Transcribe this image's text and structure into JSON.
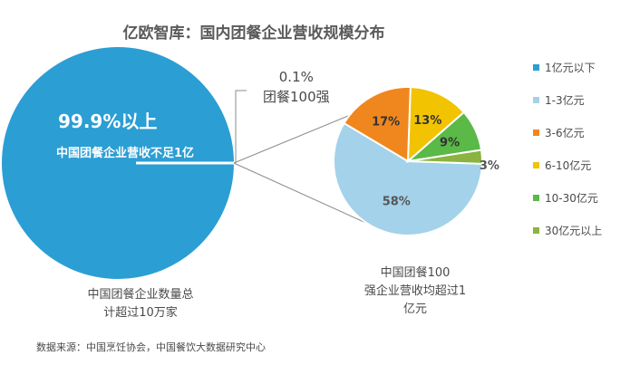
{
  "title": "亿欧智库：国内团餐企业营收规模分布",
  "left_pie": {
    "share_label": "99.9%以上",
    "share_desc": "中国团餐企业营收不足1亿",
    "top_share_pct": "0.1%",
    "top_share_label": "团餐100强",
    "caption_line1": "中国团餐企业数量总",
    "caption_line2": "计超过10万家",
    "color": "#2b9ed4"
  },
  "right_caption": {
    "line1": "中国团餐100",
    "line2": "强企业营收均超过1",
    "line3": "亿元"
  },
  "source": "数据来源：中国烹饪协会，中国餐饮大数据研究中心",
  "chart_data": [
    {
      "type": "pie",
      "title": "",
      "slices": [
        {
          "label": "99.9%以上",
          "value": 99.9,
          "color": "#2b9ed4"
        },
        {
          "label": "0.1%",
          "value": 0.1,
          "color": "#2b9ed4"
        }
      ]
    },
    {
      "type": "pie",
      "title": "",
      "legend_position": "right",
      "slices": [
        {
          "label": "1亿元以下",
          "value": 0,
          "display": "",
          "color": "#2b9ed4"
        },
        {
          "label": "1-3亿元",
          "value": 58,
          "display": "58%",
          "color": "#a3d2ea"
        },
        {
          "label": "3-6亿元",
          "value": 17,
          "display": "17%",
          "color": "#f0871e"
        },
        {
          "label": "6-10亿元",
          "value": 13,
          "display": "13%",
          "color": "#f2c300"
        },
        {
          "label": "10-30亿元",
          "value": 9,
          "display": "9%",
          "color": "#5ab947"
        },
        {
          "label": "30亿元以上",
          "value": 3,
          "display": "3%",
          "color": "#8bb340"
        }
      ]
    }
  ]
}
